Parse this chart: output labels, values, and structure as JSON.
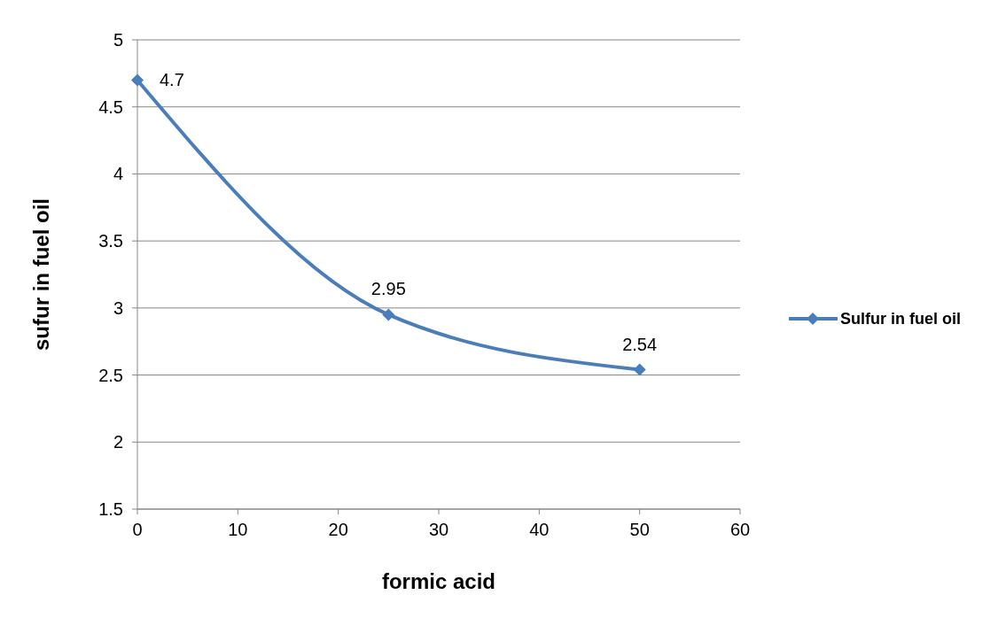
{
  "chart_data": {
    "type": "line",
    "xlabel": "formic acid",
    "ylabel": "sufur in fuel oil",
    "x": [
      0,
      25,
      50
    ],
    "series": [
      {
        "name": "Sulfur in fuel oil",
        "color": "#4a7ebb",
        "values": [
          4.7,
          2.95,
          2.54
        ]
      }
    ],
    "xlim": [
      0,
      60
    ],
    "xticks": [
      0,
      10,
      20,
      30,
      40,
      50,
      60
    ],
    "ylim": [
      1.5,
      5
    ],
    "yticks": [
      1.5,
      2,
      2.5,
      3,
      3.5,
      4,
      4.5,
      5
    ],
    "grid": "y",
    "legend": "right",
    "marker": "diamond",
    "line_style": "solid",
    "data_labels": true
  }
}
